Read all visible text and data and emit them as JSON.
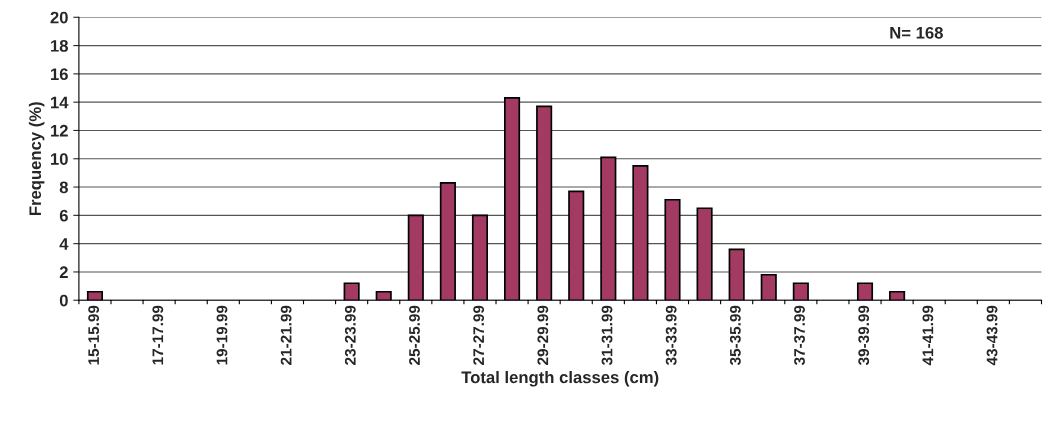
{
  "chart_data": {
    "type": "bar",
    "xlabel": "Total length classes (cm)",
    "ylabel": "Frequency (%)",
    "categories": [
      "15-15.99",
      null,
      "17-17.99",
      null,
      "19-19.99",
      null,
      "21-21.99",
      null,
      "23-23.99",
      null,
      "25-25.99",
      null,
      "27-27.99",
      null,
      "29-29.99",
      null,
      "31-31.99",
      null,
      "33-33.99",
      null,
      "35-35.99",
      null,
      "37-37.99",
      null,
      "39-39.99",
      null,
      "41-41.99",
      null,
      "43-43.99",
      null
    ],
    "values": [
      0.6,
      0,
      0,
      0,
      0,
      0,
      0,
      0,
      1.2,
      0.6,
      6.0,
      8.3,
      6.0,
      14.3,
      13.7,
      7.7,
      10.1,
      9.5,
      7.1,
      6.5,
      3.6,
      1.8,
      1.2,
      0,
      1.2,
      0.6,
      0,
      0,
      0,
      0
    ],
    "color": "#a33a63",
    "ylim": [
      0,
      20
    ],
    "yticks": [
      0,
      2,
      4,
      6,
      8,
      10,
      12,
      14,
      16,
      18,
      20
    ],
    "grid": "y",
    "annotations": [
      "N= 168"
    ]
  }
}
